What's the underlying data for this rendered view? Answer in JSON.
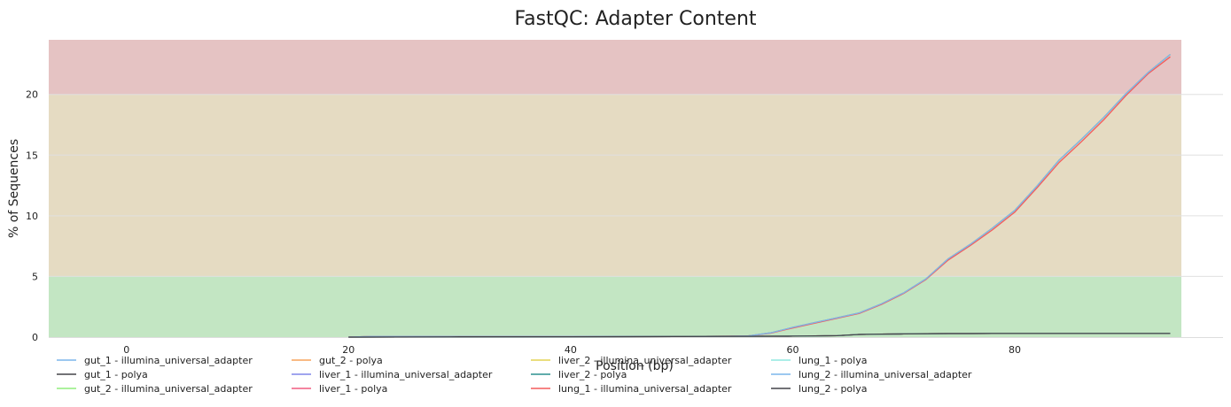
{
  "chart_data": {
    "type": "line",
    "title": "FastQC: Adapter Content",
    "xlabel": "Position (bp)",
    "ylabel": "% of Sequences",
    "xlim": [
      -7,
      95
    ],
    "ylim": [
      0,
      24.5
    ],
    "xticks": [
      0,
      20,
      40,
      60,
      80
    ],
    "yticks": [
      0,
      5,
      10,
      15,
      20
    ],
    "grid": "horizontal",
    "bands": [
      {
        "from": 0,
        "to": 5,
        "color": "#c3e6c3"
      },
      {
        "from": 5,
        "to": 20,
        "color": "#e5dbc2"
      },
      {
        "from": 20,
        "to": 24.5,
        "color": "#e5c3c3"
      }
    ],
    "legend_position": "bottom",
    "series": [
      {
        "name": "gut_1 - illumina_universal_adapter",
        "color": "#7cb5ec",
        "x": [
          20,
          22,
          30,
          40,
          50,
          54,
          56,
          58,
          60,
          62,
          64,
          66,
          68,
          70,
          72,
          74,
          76,
          78,
          80,
          82,
          84,
          86,
          88,
          90,
          92,
          94
        ],
        "y": [
          0,
          0.05,
          0.05,
          0.05,
          0.05,
          0.07,
          0.1,
          0.35,
          0.8,
          1.2,
          1.6,
          2.0,
          2.75,
          3.65,
          4.8,
          6.45,
          7.65,
          9.0,
          10.45,
          12.45,
          14.6,
          16.3,
          18.1,
          20.05,
          21.8,
          23.3
        ]
      },
      {
        "name": "gut_1 - polya",
        "color": "#434348",
        "x": [
          20,
          30,
          40,
          50,
          58,
          60,
          62,
          64,
          66,
          68,
          70,
          72,
          74,
          76,
          78,
          80,
          82,
          84,
          86,
          88,
          90,
          92,
          94
        ],
        "y": [
          0,
          0.02,
          0.03,
          0.05,
          0.07,
          0.08,
          0.1,
          0.12,
          0.22,
          0.25,
          0.26,
          0.28,
          0.29,
          0.29,
          0.3,
          0.3,
          0.3,
          0.3,
          0.3,
          0.3,
          0.3,
          0.3,
          0.3
        ]
      },
      {
        "name": "gut_2 - illumina_universal_adapter",
        "color": "#90ed7d",
        "x": [
          20,
          22,
          30,
          40,
          50,
          54,
          56,
          58,
          60,
          62,
          64,
          66,
          68,
          70,
          72,
          74,
          76,
          78,
          80,
          82,
          84,
          86,
          88,
          90,
          92,
          94
        ],
        "y": [
          0,
          0.05,
          0.05,
          0.05,
          0.05,
          0.07,
          0.1,
          0.35,
          0.8,
          1.2,
          1.6,
          2.0,
          2.75,
          3.65,
          4.8,
          6.45,
          7.65,
          9.0,
          10.45,
          12.45,
          14.6,
          16.3,
          18.1,
          20.05,
          21.8,
          23.3
        ]
      },
      {
        "name": "gut_2 - polya",
        "color": "#f7a35c",
        "x": [
          20,
          30,
          40,
          50,
          58,
          60,
          62,
          64,
          66,
          68,
          70,
          72,
          74,
          76,
          78,
          80,
          82,
          84,
          86,
          88,
          90,
          92,
          94
        ],
        "y": [
          0,
          0.02,
          0.03,
          0.05,
          0.07,
          0.08,
          0.1,
          0.12,
          0.22,
          0.25,
          0.26,
          0.28,
          0.29,
          0.29,
          0.3,
          0.3,
          0.3,
          0.3,
          0.3,
          0.3,
          0.3,
          0.3,
          0.3
        ]
      },
      {
        "name": "liver_1 - illumina_universal_adapter",
        "color": "#8085e9",
        "x": [
          20,
          22,
          30,
          40,
          50,
          54,
          56,
          58,
          60,
          62,
          64,
          66,
          68,
          70,
          72,
          74,
          76,
          78,
          80,
          82,
          84,
          86,
          88,
          90,
          92,
          94
        ],
        "y": [
          0,
          0.05,
          0.05,
          0.05,
          0.05,
          0.07,
          0.1,
          0.35,
          0.8,
          1.2,
          1.6,
          2.0,
          2.75,
          3.65,
          4.8,
          6.45,
          7.65,
          9.0,
          10.45,
          12.45,
          14.6,
          16.3,
          18.1,
          20.05,
          21.8,
          23.3
        ]
      },
      {
        "name": "liver_1 - polya",
        "color": "#f15c80",
        "x": [
          20,
          30,
          40,
          50,
          58,
          60,
          62,
          64,
          66,
          68,
          70,
          72,
          74,
          76,
          78,
          80,
          82,
          84,
          86,
          88,
          90,
          92,
          94
        ],
        "y": [
          0,
          0.02,
          0.03,
          0.05,
          0.07,
          0.08,
          0.1,
          0.12,
          0.22,
          0.25,
          0.26,
          0.28,
          0.29,
          0.29,
          0.3,
          0.3,
          0.3,
          0.3,
          0.3,
          0.3,
          0.3,
          0.3,
          0.3
        ]
      },
      {
        "name": "liver_2 - illumina_universal_adapter",
        "color": "#e4d354",
        "x": [
          20,
          22,
          30,
          40,
          50,
          54,
          56,
          58,
          60,
          62,
          64,
          66,
          68,
          70,
          72,
          74,
          76,
          78,
          80,
          82,
          84,
          86,
          88,
          90,
          92,
          94
        ],
        "y": [
          0,
          0.05,
          0.05,
          0.05,
          0.05,
          0.07,
          0.1,
          0.35,
          0.8,
          1.2,
          1.6,
          2.0,
          2.75,
          3.65,
          4.8,
          6.45,
          7.65,
          9.0,
          10.45,
          12.45,
          14.6,
          16.3,
          18.1,
          20.05,
          21.8,
          23.3
        ]
      },
      {
        "name": "liver_2 - polya",
        "color": "#2b908f",
        "x": [
          20,
          30,
          40,
          50,
          58,
          60,
          62,
          64,
          66,
          68,
          70,
          72,
          74,
          76,
          78,
          80,
          82,
          84,
          86,
          88,
          90,
          92,
          94
        ],
        "y": [
          0,
          0.02,
          0.03,
          0.05,
          0.07,
          0.08,
          0.1,
          0.12,
          0.22,
          0.25,
          0.26,
          0.28,
          0.29,
          0.29,
          0.3,
          0.3,
          0.3,
          0.3,
          0.3,
          0.3,
          0.3,
          0.3,
          0.3
        ]
      },
      {
        "name": "lung_1 - illumina_universal_adapter",
        "color": "#f45b5b",
        "x": [
          20,
          22,
          30,
          40,
          50,
          54,
          56,
          58,
          60,
          62,
          64,
          66,
          68,
          70,
          72,
          74,
          76,
          78,
          80,
          82,
          84,
          86,
          88,
          90,
          92,
          94
        ],
        "y": [
          0,
          0.05,
          0.05,
          0.05,
          0.05,
          0.07,
          0.1,
          0.32,
          0.75,
          1.15,
          1.55,
          1.95,
          2.7,
          3.6,
          4.75,
          6.35,
          7.55,
          8.85,
          10.3,
          12.3,
          14.4,
          16.1,
          17.9,
          19.9,
          21.7,
          23.1
        ]
      },
      {
        "name": "lung_1 - polya",
        "color": "#91e8e1",
        "x": [
          20,
          30,
          40,
          50,
          58,
          60,
          62,
          64,
          66,
          68,
          70,
          72,
          74,
          76,
          78,
          80,
          82,
          84,
          86,
          88,
          90,
          92,
          94
        ],
        "y": [
          0,
          0.02,
          0.03,
          0.05,
          0.07,
          0.08,
          0.1,
          0.12,
          0.22,
          0.25,
          0.26,
          0.28,
          0.29,
          0.29,
          0.3,
          0.3,
          0.3,
          0.3,
          0.3,
          0.3,
          0.3,
          0.3,
          0.3
        ]
      },
      {
        "name": "lung_2 - illumina_universal_adapter",
        "color": "#7cb5ec",
        "x": [
          20,
          22,
          30,
          40,
          50,
          54,
          56,
          58,
          60,
          62,
          64,
          66,
          68,
          70,
          72,
          74,
          76,
          78,
          80,
          82,
          84,
          86,
          88,
          90,
          92,
          94
        ],
        "y": [
          0,
          0.05,
          0.05,
          0.05,
          0.05,
          0.07,
          0.1,
          0.35,
          0.8,
          1.2,
          1.6,
          2.0,
          2.75,
          3.65,
          4.8,
          6.45,
          7.65,
          9.0,
          10.45,
          12.45,
          14.6,
          16.3,
          18.1,
          20.05,
          21.8,
          23.3
        ]
      },
      {
        "name": "lung_2 - polya",
        "color": "#434348",
        "x": [
          20,
          30,
          40,
          50,
          58,
          60,
          62,
          64,
          66,
          68,
          70,
          72,
          74,
          76,
          78,
          80,
          82,
          84,
          86,
          88,
          90,
          92,
          94
        ],
        "y": [
          0,
          0.02,
          0.03,
          0.05,
          0.07,
          0.08,
          0.1,
          0.12,
          0.22,
          0.25,
          0.26,
          0.28,
          0.29,
          0.29,
          0.3,
          0.3,
          0.3,
          0.3,
          0.3,
          0.3,
          0.3,
          0.3,
          0.3
        ]
      }
    ]
  }
}
